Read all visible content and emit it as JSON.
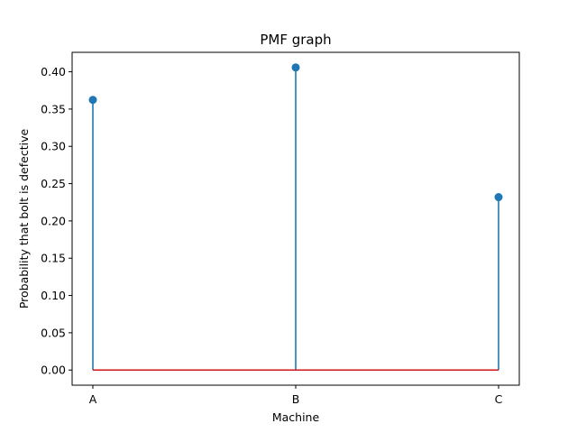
{
  "chart_data": {
    "type": "stem",
    "title": "PMF graph",
    "xlabel": "Machine",
    "ylabel": "Probability that bolt is defective",
    "categories": [
      "A",
      "B",
      "C"
    ],
    "values": [
      0.3623,
      0.4058,
      0.2319
    ],
    "ylim": [
      -0.0203,
      0.4261
    ],
    "yticks": [
      "0.00",
      "0.05",
      "0.10",
      "0.15",
      "0.20",
      "0.25",
      "0.30",
      "0.35",
      "0.40"
    ],
    "grid": false,
    "colors": {
      "stem": "#1f77b4",
      "marker": "#1f77b4",
      "baseline": "#d62728"
    }
  }
}
